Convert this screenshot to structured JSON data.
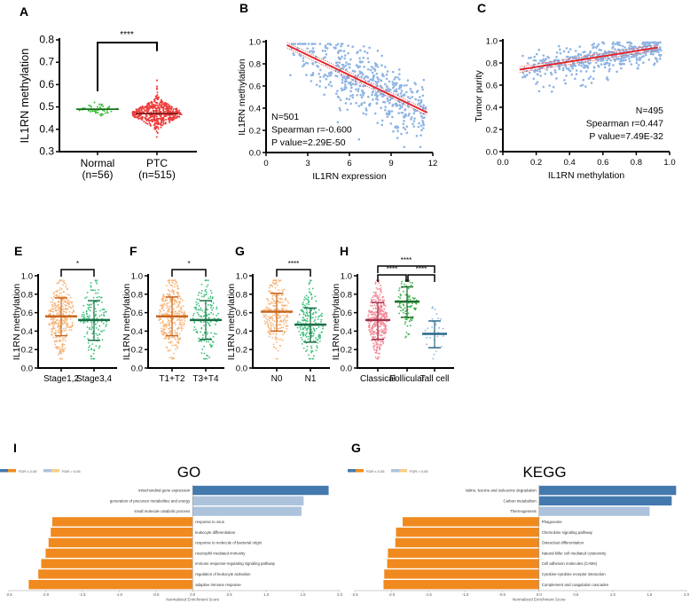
{
  "colors": {
    "fdr_sig_positive": "#4479ad",
    "fdr_sig_negative": "#f08a1f",
    "fdr_nonsig_positive": "#adc3dc",
    "fdr_nonsig_negative": "#f9cc8a",
    "scatter_points": "#8fb5e3",
    "regression_line": "#e8282b"
  },
  "chart_data": [
    {
      "panel": "A",
      "type": "scatter",
      "subtype": "dot-plot",
      "ylabel": "IL1RN methylation",
      "ylim": [
        0.3,
        0.8
      ],
      "yticks": [
        "0.3",
        "0.4",
        "0.5",
        "0.6",
        "0.7",
        "0.8"
      ],
      "categories": [
        {
          "name": "Normal",
          "n_label": "(n=56)",
          "n": 56,
          "median": 0.49,
          "color": "#3cbf3c",
          "line_color": "#1a6e1a"
        },
        {
          "name": "PTC",
          "n_label": "(n=515)",
          "n": 515,
          "median": 0.47,
          "color": "#ee3b3b",
          "line_color": "#7a1a1a"
        }
      ],
      "significance": "****"
    },
    {
      "panel": "B",
      "type": "scatter",
      "xlabel": "IL1RN expression",
      "ylabel": "IL1RN methylation",
      "xlim": [
        0,
        12
      ],
      "ylim": [
        0,
        1.0
      ],
      "xticks": [
        "0",
        "3",
        "6",
        "9",
        "12"
      ],
      "yticks": [
        "0.0",
        "0.2",
        "0.4",
        "0.6",
        "0.8",
        "1.0"
      ],
      "regression": {
        "x": [
          1.5,
          11.6
        ],
        "y": [
          0.97,
          0.36
        ]
      },
      "annotations": [
        "N=501",
        "Spearman r=-0.600",
        "P value=2.29E-50"
      ]
    },
    {
      "panel": "C",
      "type": "scatter",
      "xlabel": "IL1RN methylation",
      "ylabel": "Tumor purity",
      "xlim": [
        0,
        1.0
      ],
      "ylim": [
        0,
        1.0
      ],
      "xticks": [
        "0.0",
        "0.2",
        "0.4",
        "0.6",
        "0.8",
        "1.0"
      ],
      "yticks": [
        "0.0",
        "0.2",
        "0.4",
        "0.6",
        "0.8",
        "1.0"
      ],
      "regression": {
        "x": [
          0.1,
          0.93
        ],
        "y": [
          0.74,
          0.94
        ]
      },
      "annotations": [
        "N=495",
        "Spearman r=0.447",
        "P value=7.49E-32"
      ]
    },
    {
      "panel": "E",
      "type": "scatter",
      "subtype": "dot-plot",
      "ylabel": "IL1RN methylation",
      "ylim": [
        0,
        1.0
      ],
      "yticks": [
        "0.0",
        "0.2",
        "0.4",
        "0.6",
        "0.8",
        "1.0"
      ],
      "categories": [
        {
          "name": "Stage1,2",
          "median": 0.56,
          "low": 0.35,
          "high": 0.76,
          "color": "#f7b57a",
          "line_color": "#c8661e"
        },
        {
          "name": "Stage3,4",
          "median": 0.52,
          "low": 0.3,
          "high": 0.73,
          "color": "#3cbf7a",
          "line_color": "#1a6e45"
        }
      ],
      "significance": [
        {
          "label": "*",
          "from": 0,
          "to": 1
        }
      ]
    },
    {
      "panel": "F",
      "type": "scatter",
      "subtype": "dot-plot",
      "ylabel": "IL1RN methylation",
      "ylim": [
        0,
        1.0
      ],
      "yticks": [
        "0.0",
        "0.2",
        "0.4",
        "0.6",
        "0.8",
        "1.0"
      ],
      "categories": [
        {
          "name": "T1+T2",
          "median": 0.56,
          "low": 0.35,
          "high": 0.77,
          "color": "#f7b57a",
          "line_color": "#c8661e"
        },
        {
          "name": "T3+T4",
          "median": 0.52,
          "low": 0.31,
          "high": 0.73,
          "color": "#3cbf7a",
          "line_color": "#1a6e45"
        }
      ],
      "significance": [
        {
          "label": "*",
          "from": 0,
          "to": 1
        }
      ]
    },
    {
      "panel": "G",
      "type": "scatter",
      "subtype": "dot-plot",
      "ylabel": "IL1RN methylation",
      "ylim": [
        0,
        1.0
      ],
      "yticks": [
        "0.0",
        "0.2",
        "0.4",
        "0.6",
        "0.8",
        "1.0"
      ],
      "categories": [
        {
          "name": "N0",
          "median": 0.61,
          "low": 0.4,
          "high": 0.81,
          "color": "#f7b57a",
          "line_color": "#c8661e"
        },
        {
          "name": "N1",
          "median": 0.47,
          "low": 0.28,
          "high": 0.65,
          "color": "#3cbf7a",
          "line_color": "#1a6e45"
        }
      ],
      "significance": [
        {
          "label": "****",
          "from": 0,
          "to": 1
        }
      ]
    },
    {
      "panel": "H",
      "type": "scatter",
      "subtype": "dot-plot",
      "ylabel": "IL1RN methylation",
      "ylim": [
        0,
        1.0
      ],
      "yticks": [
        "0.0",
        "0.2",
        "0.4",
        "0.6",
        "0.8",
        "1.0"
      ],
      "categories": [
        {
          "name": "Classical",
          "median": 0.52,
          "low": 0.31,
          "high": 0.71,
          "color": "#f28a98",
          "line_color": "#a0304a"
        },
        {
          "name": "Follicular",
          "median": 0.72,
          "low": 0.55,
          "high": 0.88,
          "color": "#3cb44b",
          "line_color": "#1a6e2a"
        },
        {
          "name": "Tall cell",
          "median": 0.37,
          "low": 0.22,
          "high": 0.51,
          "color": "#8fb5dc",
          "line_color": "#2a6a8a"
        }
      ],
      "significance": [
        {
          "label": "****",
          "from": 0,
          "to": 2,
          "level": 2
        },
        {
          "label": "****",
          "from": 0,
          "to": 1,
          "level": 1
        },
        {
          "label": "****",
          "from": 1,
          "to": 2,
          "level": 1
        }
      ]
    },
    {
      "panel": "I",
      "type": "bar",
      "orientation": "horizontal",
      "title": "GO",
      "xlabel": "Normalized Enrichment Score",
      "xlim": [
        -2.5,
        2.0
      ],
      "xticks": [
        "-2.5",
        "-2.0",
        "-1.5",
        "-1.0",
        "-0.5",
        "0.0",
        "0.5",
        "1.0",
        "1.5",
        "2.0"
      ],
      "legend": {
        "placement": "top-left",
        "entries": [
          "FDR ≤ 0.05",
          "FDR > 0.05"
        ]
      },
      "categories": [
        "mitochondrial gene expression",
        "generation of precursor metabolites and energy",
        "small molecule catabolic process",
        "response to virus",
        "leukocyte differentiation",
        "response to molecule of bacterial origin",
        "neutrophil mediated immunity",
        "immune response-regulating signaling pathway",
        "regulation of leukocyte activation",
        "adaptive immune response"
      ],
      "values": [
        1.85,
        1.51,
        1.48,
        -1.91,
        -1.93,
        -1.96,
        -2.0,
        -2.06,
        -2.1,
        -2.23
      ],
      "fdr_significant": [
        true,
        false,
        false,
        true,
        true,
        true,
        true,
        true,
        true,
        true
      ]
    },
    {
      "panel": "G",
      "type": "bar",
      "orientation": "horizontal",
      "title": "KEGG",
      "xlabel": "Normalized Enrichment Score",
      "xlim": [
        -2.5,
        2.0
      ],
      "xticks": [
        "-2.5",
        "-2.0",
        "-1.5",
        "-1.0",
        "-0.5",
        "0.0",
        "0.5",
        "1.0",
        "1.5",
        "2.0"
      ],
      "legend": {
        "placement": "top-left",
        "entries": [
          "FDR ≤ 0.05",
          "FDR > 0.05"
        ]
      },
      "categories": [
        "Valine, leucine and isoleucine degradation",
        "Carbon metabolism",
        "Thermogenesis",
        "Phagosome",
        "Chemokine signaling pathway",
        "Osteoclast differentiation",
        "Natural killer cell mediated cytotoxicity",
        "Cell adhesion molecules (CAMs)",
        "Cytokine-cytokine receptor interaction",
        "Complement and coagulation cascades"
      ],
      "values": [
        1.86,
        1.8,
        1.5,
        -1.85,
        -1.94,
        -1.95,
        -2.05,
        -2.06,
        -2.1,
        -2.11
      ],
      "fdr_significant": [
        true,
        true,
        false,
        true,
        true,
        true,
        true,
        true,
        true,
        true
      ]
    }
  ]
}
